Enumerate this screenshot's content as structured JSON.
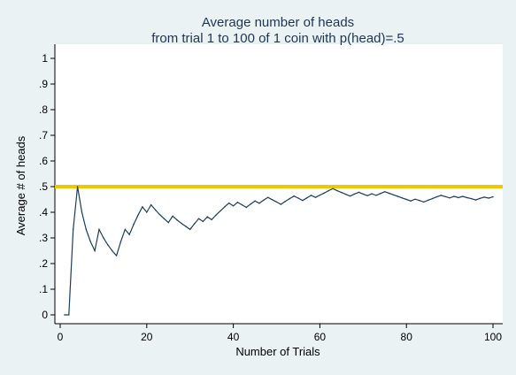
{
  "chart_data": {
    "type": "line",
    "title": "Average number of heads",
    "subtitle": "from trial 1 to 100 of 1 coin with p(head)=.5",
    "xlabel": "Number of Trials",
    "ylabel": "Average # of heads",
    "xlim": [
      0,
      100
    ],
    "ylim": [
      0,
      1
    ],
    "x_ticks": [
      0,
      20,
      40,
      60,
      80,
      100
    ],
    "x_tick_labels": [
      "0",
      "20",
      "40",
      "60",
      "80",
      "100"
    ],
    "y_ticks": [
      0,
      0.1,
      0.2,
      0.3,
      0.4,
      0.5,
      0.6,
      0.7,
      0.8,
      0.9,
      1
    ],
    "y_tick_labels": [
      "0",
      ".1",
      ".2",
      ".3",
      ".4",
      ".5",
      ".6",
      ".7",
      ".8",
      ".9",
      "1"
    ],
    "grid": false,
    "legend": "none",
    "reference_line": {
      "y": 0.5,
      "color": "#f0c800"
    },
    "line_color": "#1a3e5c",
    "background_color": "#eaf2f3",
    "series": [
      {
        "x": [
          1,
          2,
          3,
          4,
          5,
          6,
          7,
          8,
          9,
          10,
          11,
          12,
          13,
          14,
          15,
          16,
          17,
          18,
          19,
          20,
          21,
          22,
          23,
          24,
          25,
          26,
          27,
          28,
          29,
          30,
          31,
          32,
          33,
          34,
          35,
          36,
          37,
          38,
          39,
          40,
          41,
          42,
          43,
          44,
          45,
          46,
          47,
          48,
          49,
          50,
          51,
          52,
          53,
          54,
          55,
          56,
          57,
          58,
          59,
          60,
          61,
          62,
          63,
          64,
          65,
          66,
          67,
          68,
          69,
          70,
          71,
          72,
          73,
          74,
          75,
          76,
          77,
          78,
          79,
          80,
          81,
          82,
          83,
          84,
          85,
          86,
          87,
          88,
          89,
          90,
          91,
          92,
          93,
          94,
          95,
          96,
          97,
          98,
          99,
          100
        ],
        "values": [
          0,
          0,
          0.333,
          0.5,
          0.4,
          0.333,
          0.286,
          0.25,
          0.333,
          0.3,
          0.273,
          0.25,
          0.231,
          0.286,
          0.333,
          0.313,
          0.353,
          0.389,
          0.421,
          0.4,
          0.429,
          0.409,
          0.391,
          0.375,
          0.36,
          0.385,
          0.37,
          0.357,
          0.345,
          0.333,
          0.355,
          0.375,
          0.364,
          0.382,
          0.371,
          0.389,
          0.405,
          0.421,
          0.436,
          0.425,
          0.439,
          0.429,
          0.419,
          0.432,
          0.444,
          0.435,
          0.447,
          0.458,
          0.449,
          0.44,
          0.431,
          0.442,
          0.453,
          0.463,
          0.455,
          0.446,
          0.456,
          0.466,
          0.458,
          0.467,
          0.475,
          0.484,
          0.492,
          0.484,
          0.477,
          0.47,
          0.463,
          0.471,
          0.478,
          0.471,
          0.465,
          0.472,
          0.466,
          0.473,
          0.48,
          0.474,
          0.468,
          0.462,
          0.456,
          0.45,
          0.444,
          0.451,
          0.446,
          0.44,
          0.447,
          0.453,
          0.46,
          0.466,
          0.461,
          0.456,
          0.462,
          0.457,
          0.462,
          0.457,
          0.453,
          0.448,
          0.454,
          0.459,
          0.455,
          0.46
        ]
      }
    ]
  }
}
